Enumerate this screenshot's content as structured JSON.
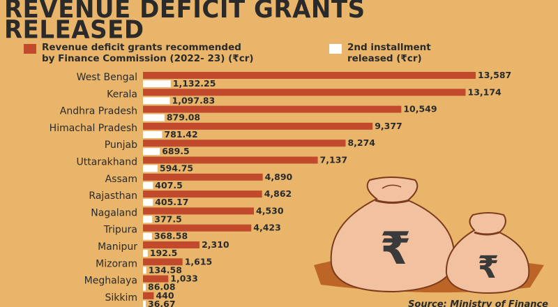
{
  "title_lines": [
    "REVENUE DEFICIT GRANTS",
    "RELEASED"
  ],
  "legend": {
    "grants_label_1": "Revenue deficit grants recommended",
    "grants_label_2": "by Finance Commission (2022- 23) (₹cr)",
    "installment_label_1": "2nd installment",
    "installment_label_2": "released (₹cr)"
  },
  "source": "Source: Ministry of Finance",
  "colors": {
    "grant": "#c14a2c",
    "installment": "#ffffff",
    "background": "#e8b56a",
    "text": "#2a2a2a"
  },
  "illustration": {
    "name": "money-bags-rupee-icon",
    "symbol": "₹"
  },
  "chart_data": {
    "type": "bar",
    "orientation": "horizontal",
    "categories": [
      "West Bengal",
      "Kerala",
      "Andhra Pradesh",
      "Himachal Pradesh",
      "Punjab",
      "Uttarakhand",
      "Assam",
      "Rajasthan",
      "Nagaland",
      "Tripura",
      "Manipur",
      "Mizoram",
      "Meghalaya",
      "Sikkim"
    ],
    "series": [
      {
        "name": "Revenue deficit grants recommended by Finance Commission (2022- 23) (₹cr)",
        "values": [
          13587,
          13174,
          10549,
          9377,
          8274,
          7137,
          4890,
          4862,
          4530,
          4423,
          2310,
          1615,
          1033,
          440
        ],
        "labels": [
          "13,587",
          "13,174",
          "10,549",
          "9,377",
          "8,274",
          "7,137",
          "4,890",
          "4,862",
          "4,530",
          "4,423",
          "2,310",
          "1,615",
          "1,033",
          "440"
        ]
      },
      {
        "name": "2nd installment released (₹cr)",
        "values": [
          1132.25,
          1097.83,
          879.08,
          781.42,
          689.5,
          594.75,
          407.5,
          405.17,
          377.5,
          368.58,
          192.5,
          134.58,
          86.08,
          36.67
        ],
        "labels": [
          "1,132.25",
          "1,097.83",
          "879.08",
          "781.42",
          "689.5",
          "594.75",
          "407.5",
          "405.17",
          "377.5",
          "368.58",
          "192.5",
          "134.58",
          "86.08",
          "36.67"
        ]
      }
    ],
    "xlim": [
      0,
      13587
    ]
  }
}
